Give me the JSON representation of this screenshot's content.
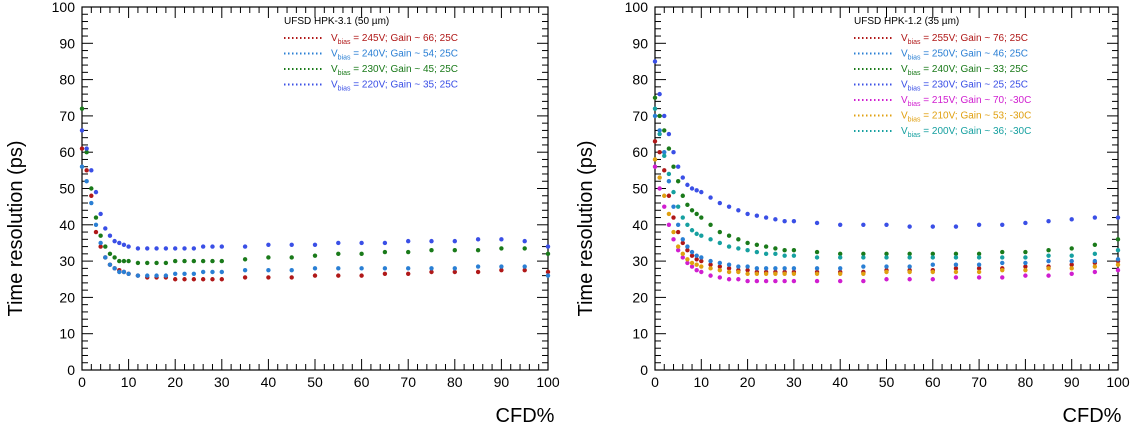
{
  "chart_data": [
    {
      "type": "scatter",
      "legend_title": "UFSD HPK-3.1 (50 µm)",
      "xlabel": "CFD%",
      "ylabel": "Time resolution (ps)",
      "xlim": [
        0,
        100
      ],
      "ylim": [
        0,
        100
      ],
      "x_ticks": [
        "0",
        "10",
        "20",
        "30",
        "40",
        "50",
        "60",
        "70",
        "80",
        "90",
        "100"
      ],
      "y_ticks": [
        "0",
        "10",
        "20",
        "30",
        "40",
        "50",
        "60",
        "70",
        "80",
        "90",
        "100"
      ],
      "grid": false,
      "legend_position": "top-right",
      "series": [
        {
          "label_v": "V",
          "label_sub": "bias",
          "label_rest": " = 245V; Gain ~ 66; 25C",
          "color": "#b01818",
          "x": [
            0,
            1,
            2,
            3,
            4,
            5,
            6,
            7,
            8,
            9,
            10,
            12,
            14,
            16,
            18,
            20,
            22,
            24,
            26,
            28,
            30,
            35,
            40,
            45,
            50,
            55,
            60,
            65,
            70,
            75,
            80,
            85,
            90,
            95,
            100
          ],
          "y": [
            61,
            55,
            48,
            38,
            34,
            31,
            29,
            28,
            27.5,
            27,
            26.5,
            26,
            25.5,
            25.5,
            25.5,
            25,
            25,
            25,
            25,
            25,
            25,
            25.5,
            25.5,
            25.5,
            26,
            26,
            26,
            26.5,
            26.5,
            27,
            27,
            27,
            27.5,
            27.5,
            27
          ]
        },
        {
          "label_v": "V",
          "label_sub": "bias",
          "label_rest": " = 240V; Gain ~ 54; 25C",
          "color": "#2a7fd4",
          "x": [
            0,
            1,
            2,
            3,
            4,
            5,
            6,
            7,
            8,
            9,
            10,
            12,
            14,
            16,
            18,
            20,
            22,
            24,
            26,
            28,
            30,
            35,
            40,
            45,
            50,
            55,
            60,
            65,
            70,
            75,
            80,
            85,
            90,
            95,
            100
          ],
          "y": [
            56,
            52,
            46,
            40,
            35,
            31,
            29,
            28,
            27,
            27,
            26.5,
            26,
            26,
            26,
            26,
            26.5,
            26.5,
            26.5,
            27,
            27,
            27,
            27.5,
            27.5,
            27.5,
            28,
            28,
            28,
            28,
            28,
            28,
            28,
            28.5,
            28.5,
            28.5,
            26
          ]
        },
        {
          "label_v": "V",
          "label_sub": "bias",
          "label_rest": " = 230V; Gain ~ 45; 25C",
          "color": "#1a7a1a",
          "x": [
            0,
            1,
            2,
            3,
            4,
            5,
            6,
            7,
            8,
            9,
            10,
            12,
            14,
            16,
            18,
            20,
            22,
            24,
            26,
            28,
            30,
            35,
            40,
            45,
            50,
            55,
            60,
            65,
            70,
            75,
            80,
            85,
            90,
            95,
            100
          ],
          "y": [
            72,
            60,
            50,
            42,
            37,
            34,
            32,
            31,
            30,
            30,
            30,
            29.5,
            29.5,
            29.5,
            29.5,
            30,
            30,
            30,
            30,
            30,
            30,
            30.5,
            31,
            31,
            31.5,
            32,
            32,
            32.5,
            32.5,
            33,
            33,
            33,
            33.5,
            33.5,
            32
          ]
        },
        {
          "label_v": "V",
          "label_sub": "bias",
          "label_rest": " = 220V; Gain ~ 35; 25C",
          "color": "#3a4fe6",
          "x": [
            0,
            1,
            2,
            3,
            4,
            5,
            6,
            7,
            8,
            9,
            10,
            12,
            14,
            16,
            18,
            20,
            22,
            24,
            26,
            28,
            30,
            35,
            40,
            45,
            50,
            55,
            60,
            65,
            70,
            75,
            80,
            85,
            90,
            95,
            100
          ],
          "y": [
            66,
            61,
            55,
            49,
            43,
            39,
            37,
            35.5,
            35,
            34.5,
            34,
            33.5,
            33.5,
            33.5,
            33.5,
            33.5,
            33.5,
            33.5,
            34,
            34,
            34,
            34,
            34.5,
            34.5,
            34.5,
            35,
            35,
            35,
            35.5,
            35.5,
            35.5,
            36,
            36,
            35.5,
            34
          ]
        }
      ]
    },
    {
      "type": "scatter",
      "legend_title": "UFSD HPK-1.2 (35 µm)",
      "xlabel": "CFD%",
      "ylabel": "Time resolution (ps)",
      "xlim": [
        0,
        100
      ],
      "ylim": [
        0,
        100
      ],
      "x_ticks": [
        "0",
        "10",
        "20",
        "30",
        "40",
        "50",
        "60",
        "70",
        "80",
        "90",
        "100"
      ],
      "y_ticks": [
        "0",
        "10",
        "20",
        "30",
        "40",
        "50",
        "60",
        "70",
        "80",
        "90",
        "100"
      ],
      "grid": false,
      "legend_position": "top-right",
      "series": [
        {
          "label_v": "V",
          "label_sub": "bias",
          "label_rest": " = 255V; Gain ~ 76; 25C",
          "color": "#b01818",
          "x": [
            0,
            1,
            2,
            3,
            4,
            5,
            6,
            7,
            8,
            9,
            10,
            12,
            14,
            16,
            18,
            20,
            22,
            24,
            26,
            28,
            30,
            35,
            40,
            45,
            50,
            55,
            60,
            65,
            70,
            75,
            80,
            85,
            90,
            95,
            100
          ],
          "y": [
            63,
            60,
            55,
            48,
            42,
            38,
            35,
            33,
            31.5,
            30.5,
            30,
            29,
            28.5,
            28,
            27.5,
            27.5,
            27,
            27,
            27,
            27,
            27,
            27,
            27,
            27,
            27.5,
            27.5,
            27.5,
            28,
            28,
            28,
            28.5,
            28.5,
            29,
            29.5,
            30
          ]
        },
        {
          "label_v": "V",
          "label_sub": "bias",
          "label_rest": " = 250V; Gain ~ 46; 25C",
          "color": "#2a7fd4",
          "x": [
            0,
            1,
            2,
            3,
            4,
            5,
            6,
            7,
            8,
            9,
            10,
            12,
            14,
            16,
            18,
            20,
            22,
            24,
            26,
            28,
            30,
            35,
            40,
            45,
            50,
            55,
            60,
            65,
            70,
            75,
            80,
            85,
            90,
            95,
            100
          ],
          "y": [
            70,
            66,
            60,
            52,
            45,
            40,
            36,
            34,
            32.5,
            31.5,
            31,
            30,
            29.5,
            29,
            28.5,
            28.5,
            28,
            28,
            28,
            28,
            28,
            28,
            28,
            28.5,
            28.5,
            28.5,
            29,
            29,
            29,
            29.5,
            29.5,
            30,
            30,
            30,
            30.5
          ]
        },
        {
          "label_v": "V",
          "label_sub": "bias",
          "label_rest": " = 240V; Gain ~ 33; 25C",
          "color": "#1a7a1a",
          "x": [
            0,
            1,
            2,
            3,
            4,
            5,
            6,
            7,
            8,
            9,
            10,
            12,
            14,
            16,
            18,
            20,
            22,
            24,
            26,
            28,
            30,
            35,
            40,
            45,
            50,
            55,
            60,
            65,
            70,
            75,
            80,
            85,
            90,
            95,
            100
          ],
          "y": [
            75,
            70,
            66,
            61,
            56,
            52,
            48,
            45.5,
            44,
            43,
            42,
            40,
            38,
            37,
            36,
            35,
            34.5,
            34,
            33.5,
            33,
            33,
            32.5,
            32,
            32,
            32,
            32,
            32,
            32,
            32,
            32.5,
            32.5,
            33,
            33.5,
            34.5,
            36
          ]
        },
        {
          "label_v": "V",
          "label_sub": "bias",
          "label_rest": " = 230V; Gain ~ 25; 25C",
          "color": "#3a4fe6",
          "x": [
            0,
            1,
            2,
            3,
            4,
            5,
            6,
            7,
            8,
            9,
            10,
            12,
            14,
            16,
            18,
            20,
            22,
            24,
            26,
            28,
            30,
            35,
            40,
            45,
            50,
            55,
            60,
            65,
            70,
            75,
            80,
            85,
            90,
            95,
            100
          ],
          "y": [
            85,
            76,
            70,
            65,
            60,
            56,
            53,
            51,
            50,
            49.5,
            49,
            47.5,
            46,
            45,
            44,
            43,
            42.5,
            42,
            41.5,
            41,
            41,
            40.5,
            40,
            40,
            40,
            39.5,
            39.5,
            39.5,
            40,
            40,
            40.5,
            41,
            41.5,
            42,
            42
          ]
        },
        {
          "label_v": "V",
          "label_sub": "bias",
          "label_rest": " = 215V; Gain ~ 70; -30C",
          "color": "#d01ed0",
          "x": [
            0,
            1,
            2,
            3,
            4,
            5,
            6,
            7,
            8,
            9,
            10,
            12,
            14,
            16,
            18,
            20,
            22,
            24,
            26,
            28,
            30,
            35,
            40,
            45,
            50,
            55,
            60,
            65,
            70,
            75,
            80,
            85,
            90,
            95,
            100
          ],
          "y": [
            56,
            50,
            45,
            40,
            36,
            33,
            31,
            29.5,
            28.5,
            27.5,
            27,
            26,
            25.5,
            25,
            25,
            24.5,
            24.5,
            24.5,
            24.5,
            24.5,
            24.5,
            24.5,
            24.5,
            24.5,
            25,
            25,
            25,
            25.5,
            25.5,
            25.5,
            26,
            26,
            26.5,
            27,
            27.5
          ]
        },
        {
          "label_v": "V",
          "label_sub": "bias",
          "label_rest": " = 210V; Gain ~ 53; -30C",
          "color": "#e0a010",
          "x": [
            0,
            1,
            2,
            3,
            4,
            5,
            6,
            7,
            8,
            9,
            10,
            12,
            14,
            16,
            18,
            20,
            22,
            24,
            26,
            28,
            30,
            35,
            40,
            45,
            50,
            55,
            60,
            65,
            70,
            75,
            80,
            85,
            90,
            95,
            100
          ],
          "y": [
            58,
            53,
            48,
            43,
            38,
            34,
            32,
            30.5,
            29.5,
            29,
            28.5,
            28,
            27.5,
            27,
            27,
            26.5,
            26.5,
            26.5,
            26.5,
            26.5,
            26.5,
            26.5,
            26.5,
            26.5,
            27,
            27,
            27,
            27,
            27,
            27.5,
            27.5,
            28,
            28,
            28.5,
            29
          ]
        },
        {
          "label_v": "V",
          "label_sub": "bias",
          "label_rest": " = 200V; Gain ~ 36; -30C",
          "color": "#16a0a0",
          "x": [
            0,
            1,
            2,
            3,
            4,
            5,
            6,
            7,
            8,
            9,
            10,
            12,
            14,
            16,
            18,
            20,
            22,
            24,
            26,
            28,
            30,
            35,
            40,
            45,
            50,
            55,
            60,
            65,
            70,
            75,
            80,
            85,
            90,
            95,
            100
          ],
          "y": [
            72,
            65,
            59,
            54,
            49,
            45,
            42,
            40,
            38.5,
            37.5,
            37,
            36,
            35,
            34,
            33.5,
            33,
            32.5,
            32,
            32,
            31.5,
            31.5,
            31,
            31,
            31,
            31,
            31,
            31,
            31,
            31,
            31,
            31,
            31.5,
            31.5,
            32,
            33
          ]
        }
      ]
    }
  ]
}
